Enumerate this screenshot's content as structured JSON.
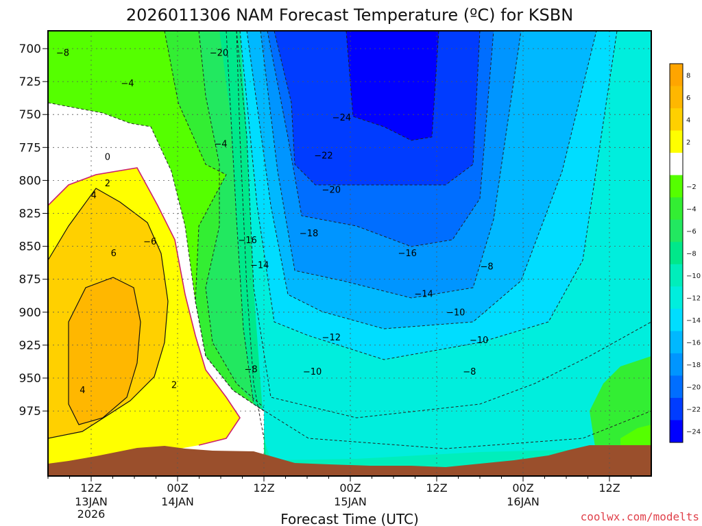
{
  "chart_data": {
    "type": "heatmap",
    "title": "2026011306 NAM Forecast Temperature (ºC) for KSBN",
    "xlabel": "Forecast Time (UTC)",
    "ylabel": "",
    "y_axis": {
      "unit": "hPa",
      "inverted": true,
      "ticks": [
        700,
        725,
        750,
        775,
        800,
        825,
        850,
        875,
        900,
        925,
        950,
        975
      ]
    },
    "x_axis": {
      "ticks": [
        {
          "label": "12Z",
          "sub": [
            "13JAN",
            "2026"
          ]
        },
        {
          "label": "00Z",
          "sub": [
            "14JAN"
          ]
        },
        {
          "label": "12Z",
          "sub": []
        },
        {
          "label": "00Z",
          "sub": [
            "15JAN"
          ]
        },
        {
          "label": "12Z",
          "sub": []
        },
        {
          "label": "00Z",
          "sub": [
            "16JAN"
          ]
        },
        {
          "label": "12Z",
          "sub": []
        }
      ]
    },
    "grid": true,
    "colorbar": {
      "placement": "right",
      "levels": [
        {
          "label": "8",
          "color": "#ffa500"
        },
        {
          "label": "6",
          "color": "#ffb700"
        },
        {
          "label": "4",
          "color": "#ffd000"
        },
        {
          "label": "2",
          "color": "#ffff00"
        },
        {
          "label": "",
          "color": "#ffffff"
        },
        {
          "label": "−2",
          "color": "#55ff00"
        },
        {
          "label": "−4",
          "color": "#33ee33"
        },
        {
          "label": "−6",
          "color": "#22e860"
        },
        {
          "label": "−8",
          "color": "#00e88a"
        },
        {
          "label": "−10",
          "color": "#00eebb"
        },
        {
          "label": "−12",
          "color": "#00eedd"
        },
        {
          "label": "−14",
          "color": "#00ddff"
        },
        {
          "label": "−16",
          "color": "#00b8ff"
        },
        {
          "label": "−18",
          "color": "#0095ff"
        },
        {
          "label": "−20",
          "color": "#006eff"
        },
        {
          "label": "−22",
          "color": "#003cff"
        },
        {
          "label": "−24",
          "color": "#0000ff"
        }
      ]
    },
    "contour_labels": [
      {
        "text": "−8",
        "t": -0.33,
        "p": 705
      },
      {
        "text": "−20",
        "t": 1.48,
        "p": 705
      },
      {
        "text": "−4",
        "t": 0.42,
        "p": 728
      },
      {
        "text": "−24",
        "t": 2.9,
        "p": 754
      },
      {
        "text": "−4",
        "t": 1.5,
        "p": 774
      },
      {
        "text": "−22",
        "t": 2.69,
        "p": 783
      },
      {
        "text": "0",
        "t": 0.19,
        "p": 784
      },
      {
        "text": "2",
        "t": 0.19,
        "p": 804
      },
      {
        "text": "−20",
        "t": 2.78,
        "p": 809
      },
      {
        "text": "4",
        "t": 0.03,
        "p": 813
      },
      {
        "text": "−18",
        "t": 2.52,
        "p": 842
      },
      {
        "text": "−16",
        "t": 1.81,
        "p": 847
      },
      {
        "text": "−6",
        "t": 0.68,
        "p": 848
      },
      {
        "text": "6",
        "t": 0.26,
        "p": 857
      },
      {
        "text": "−16",
        "t": 3.66,
        "p": 857
      },
      {
        "text": "−14",
        "t": 1.95,
        "p": 866
      },
      {
        "text": "−8",
        "t": 4.58,
        "p": 867
      },
      {
        "text": "−14",
        "t": 3.85,
        "p": 888
      },
      {
        "text": "−10",
        "t": 4.22,
        "p": 902
      },
      {
        "text": "−12",
        "t": 2.78,
        "p": 921
      },
      {
        "text": "−10",
        "t": 4.49,
        "p": 923
      },
      {
        "text": "−8",
        "t": 1.85,
        "p": 945
      },
      {
        "text": "−10",
        "t": 2.56,
        "p": 947
      },
      {
        "text": "−8",
        "t": 4.38,
        "p": 947
      },
      {
        "text": "4",
        "t": -0.1,
        "p": 961
      },
      {
        "text": "2",
        "t": 0.96,
        "p": 957
      }
    ]
  },
  "credit": "coolwx.com/modelts",
  "colors": {
    "terrain": "#9a4f2c",
    "freezing_line": "#cc1f6e"
  }
}
